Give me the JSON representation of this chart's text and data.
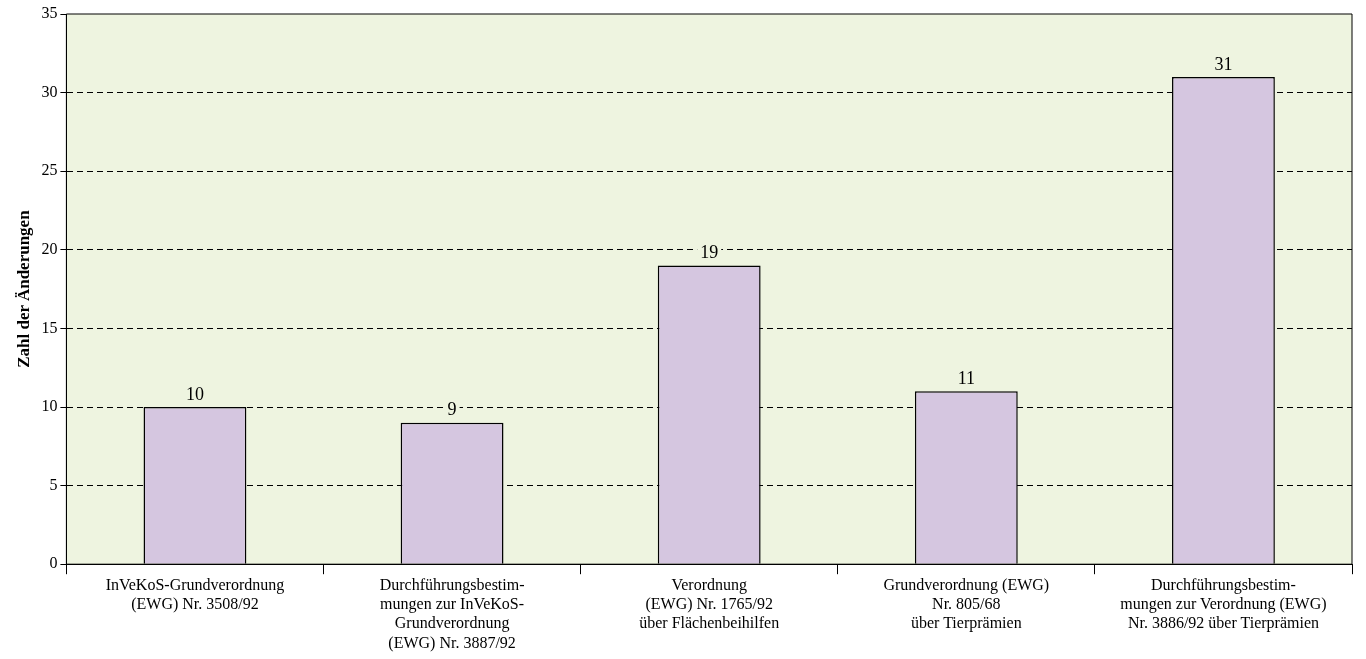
{
  "chart_data": {
    "type": "bar",
    "ylabel": "Zahl der Änderungen",
    "categories": [
      "InVeKoS-Grundverordnung\n(EWG) Nr. 3508/92",
      "Durchführungsbestim-\nmungen zur InVeKoS-\nGrundverordnung\n(EWG) Nr. 3887/92",
      "Verordnung\n(EWG) Nr. 1765/92\nüber Flächenbeihilfen",
      "Grundverordnung (EWG)\nNr. 805/68\nüber Tierprämien",
      "Durchführungsbestim-\nmungen zur Verordnung (EWG)\nNr. 3886/92 über Tierprämien"
    ],
    "values": [
      10,
      9,
      19,
      11,
      31
    ],
    "color": "#d5c6e0",
    "ylim": [
      0,
      35
    ],
    "yticks": [
      0,
      5,
      10,
      15,
      20,
      25,
      30,
      35
    ],
    "grid": "y",
    "data_labels": true,
    "legend": false
  }
}
